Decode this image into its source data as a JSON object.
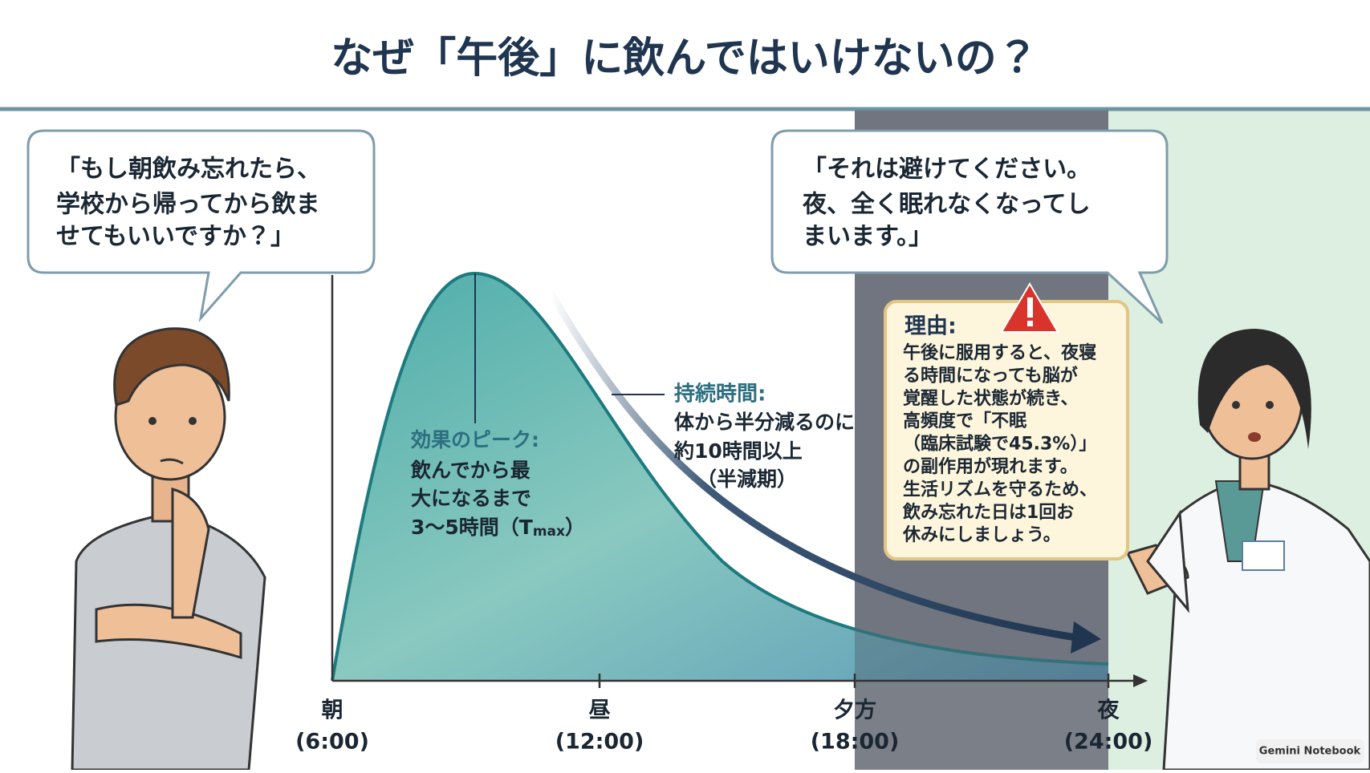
{
  "title": "なぜ「午後」に飲んではいけないの？",
  "student_bubble": [
    "「もし朝飲み忘れたら、",
    "学校から帰ってから飲ま",
    "せてもいいですか？」"
  ],
  "doctor_bubble": [
    "「それは避けてください。",
    "夜、全く眠れなくなってし",
    "まいます。」"
  ],
  "peak": {
    "heading": "効果のピーク:",
    "lines": [
      "飲んでから最",
      "大になるまで"
    ],
    "tmax": [
      "3〜5時間（T",
      "max",
      "）"
    ]
  },
  "duration": {
    "heading": "持続時間:",
    "lines": [
      "体から半分減るのに",
      "約10時間以上",
      "（半減期）"
    ]
  },
  "reason": {
    "heading": "理由:",
    "lines": [
      "午後に服用すると、夜寝",
      "る時間になっても脳が",
      "覚醒した状態が続き、",
      "高頻度で「不眠",
      "（臨床試験で45.3%）」",
      "の副作用が現れます。",
      "生活リズムを守るため、",
      "飲み忘れた日は1回お",
      "休みにしましょう。"
    ]
  },
  "axis_labels": [
    {
      "name": "朝",
      "time": "(6:00)"
    },
    {
      "name": "昼",
      "time": "(12:00)"
    },
    {
      "name": "夕方",
      "time": "(18:00)"
    },
    {
      "name": "夜",
      "time": "(24:00)"
    }
  ],
  "watermark": "Gemini Notebook"
}
